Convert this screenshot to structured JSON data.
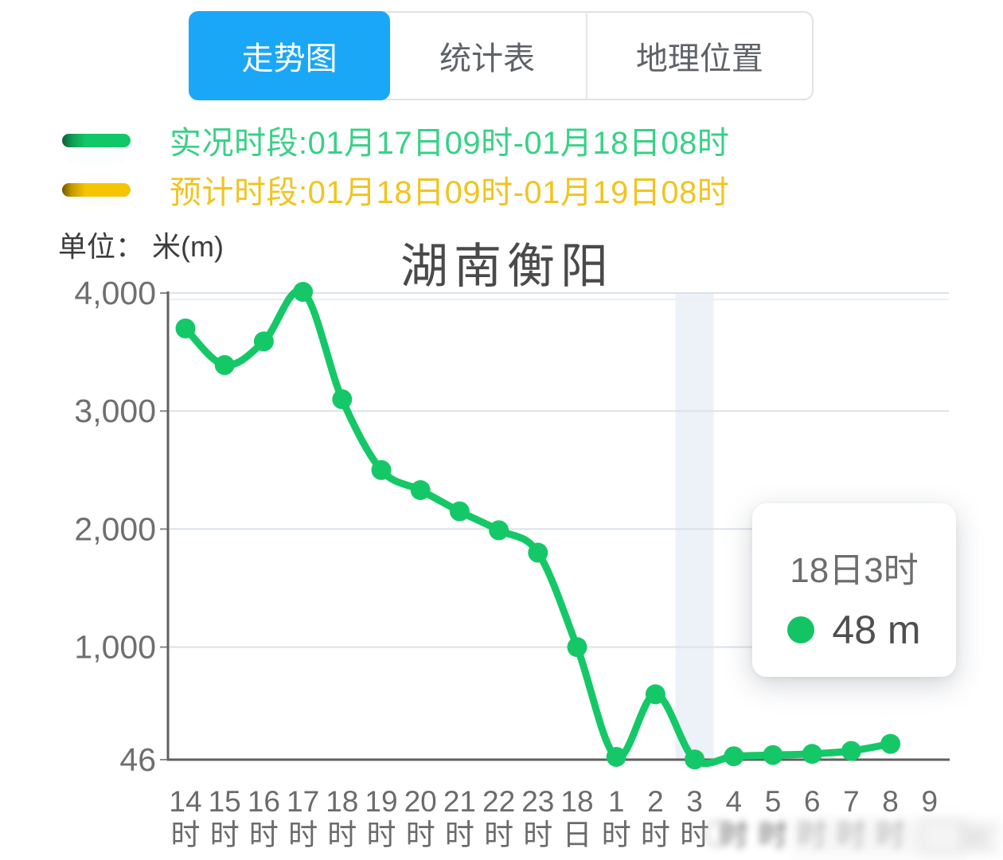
{
  "tab_bar": {
    "tabs": [
      {
        "label": "走势图",
        "active": true
      },
      {
        "label": "统计表",
        "active": false
      },
      {
        "label": "地理位置",
        "active": false
      }
    ]
  },
  "legend": {
    "actual": {
      "label": "实况时段:01月17日09时-01月18日08时",
      "color": "#12c768"
    },
    "forecast": {
      "label": "预计时段:01月18日09时-01月19日08时",
      "color": "#f5c402"
    }
  },
  "unit_label": "单位： 米(m)",
  "chart_title": "湖南衡阳",
  "tooltip": {
    "time": "18日3时",
    "value": "48 m"
  },
  "colors": {
    "accent_blue": "#1aa7f8",
    "line_green": "#15c867",
    "forecast_yellow": "#f5c402",
    "grid": "#dce1ea",
    "axis": "#606060",
    "hover_band": "#edf1f8"
  },
  "chart_data": {
    "type": "line",
    "title": "湖南衡阳",
    "ylabel": "米(m)",
    "categories": [
      "14时",
      "15时",
      "16时",
      "17时",
      "18时",
      "19时",
      "20时",
      "21时",
      "22时",
      "23时",
      "18日",
      "1时",
      "2时",
      "3时",
      "4时",
      "5时",
      "6时",
      "7时",
      "8时",
      "9时"
    ],
    "series": [
      {
        "name": "实况",
        "color": "#15c867",
        "values": [
          3700,
          3390,
          3590,
          4010,
          3100,
          2500,
          2330,
          2150,
          1990,
          1800,
          1000,
          70,
          600,
          48,
          75,
          85,
          95,
          120,
          180,
          null
        ]
      }
    ],
    "yticks": [
      46,
      1000,
      2000,
      3000,
      4000
    ],
    "ytick_labels": [
      "46",
      "1,000",
      "2,000",
      "3,000",
      "4,000"
    ],
    "ylim": [
      46,
      4020
    ],
    "grid": "horizontal",
    "legend_position": "top-left",
    "highlighted_point": {
      "index": 13,
      "label": "18日3时",
      "value_m": 48
    },
    "blurred_x_label_indices": [
      14,
      15,
      16,
      17,
      18
    ],
    "missing_unit_x_label_indices": [
      19
    ]
  }
}
